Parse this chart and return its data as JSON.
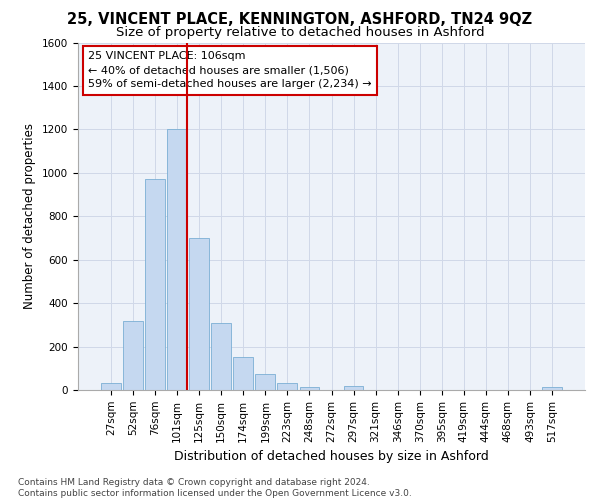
{
  "title1": "25, VINCENT PLACE, KENNINGTON, ASHFORD, TN24 9QZ",
  "title2": "Size of property relative to detached houses in Ashford",
  "xlabel": "Distribution of detached houses by size in Ashford",
  "ylabel": "Number of detached properties",
  "bar_categories": [
    "27sqm",
    "52sqm",
    "76sqm",
    "101sqm",
    "125sqm",
    "150sqm",
    "174sqm",
    "199sqm",
    "223sqm",
    "248sqm",
    "272sqm",
    "297sqm",
    "321sqm",
    "346sqm",
    "370sqm",
    "395sqm",
    "419sqm",
    "444sqm",
    "468sqm",
    "493sqm",
    "517sqm"
  ],
  "bar_values": [
    30,
    320,
    970,
    1200,
    700,
    310,
    150,
    75,
    30,
    15,
    0,
    20,
    0,
    0,
    0,
    0,
    0,
    0,
    0,
    0,
    15
  ],
  "bar_color": "#c5d8f0",
  "bar_edgecolor": "#7bafd4",
  "vline_color": "#cc0000",
  "annotation_text": "25 VINCENT PLACE: 106sqm\n← 40% of detached houses are smaller (1,506)\n59% of semi-detached houses are larger (2,234) →",
  "annotation_box_color": "#cc0000",
  "ylim": [
    0,
    1600
  ],
  "yticks": [
    0,
    200,
    400,
    600,
    800,
    1000,
    1200,
    1400,
    1600
  ],
  "grid_color": "#d0d8e8",
  "background_color": "#edf2f9",
  "footer_text": "Contains HM Land Registry data © Crown copyright and database right 2024.\nContains public sector information licensed under the Open Government Licence v3.0.",
  "title1_fontsize": 10.5,
  "title2_fontsize": 9.5,
  "xlabel_fontsize": 9,
  "ylabel_fontsize": 8.5,
  "tick_fontsize": 7.5,
  "annot_fontsize": 8,
  "footer_fontsize": 6.5
}
